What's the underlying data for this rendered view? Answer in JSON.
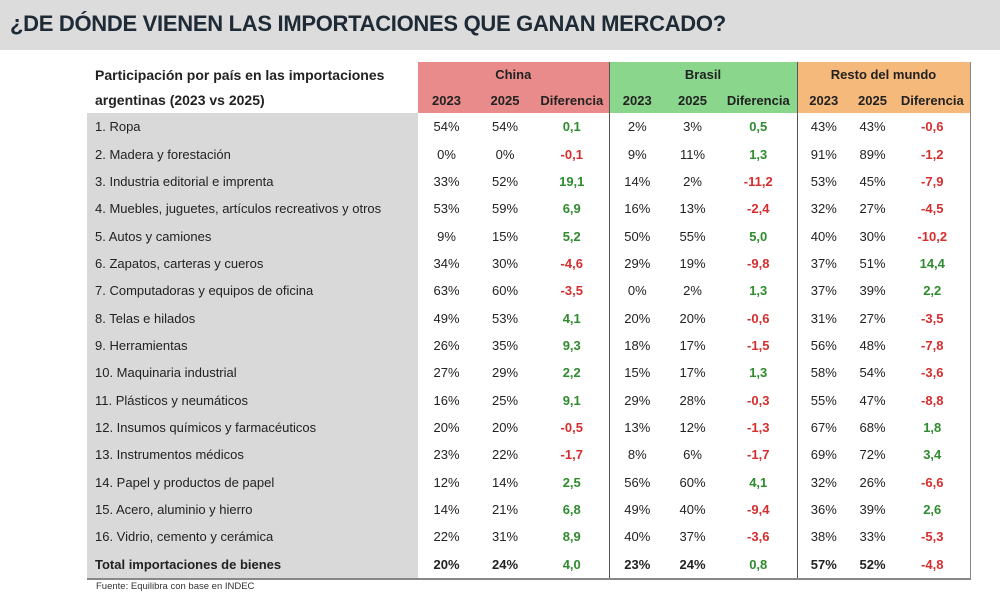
{
  "title": "¿DE DÓNDE VIENEN LAS IMPORTACIONES QUE GANAN MERCADO?",
  "header": {
    "label_line1": "Participación por país en las importaciones",
    "label_line2": "argentinas (2023 vs 2025)",
    "groups": [
      "China",
      "Brasil",
      "Resto del mundo"
    ],
    "subcolumns": [
      "2023",
      "2025",
      "Diferencia"
    ]
  },
  "colors": {
    "china": "#e98b8b",
    "brasil": "#8ad68c",
    "resto": "#f6b97c",
    "positive": "#2e8b2e",
    "negative": "#d42e2e"
  },
  "rows": [
    {
      "label": "1. Ropa",
      "china": [
        "54%",
        "54%",
        "0,1"
      ],
      "brasil": [
        "2%",
        "3%",
        "0,5"
      ],
      "resto": [
        "43%",
        "43%",
        "-0,6"
      ]
    },
    {
      "label": "2. Madera y forestación",
      "china": [
        "0%",
        "0%",
        "-0,1"
      ],
      "brasil": [
        "9%",
        "11%",
        "1,3"
      ],
      "resto": [
        "91%",
        "89%",
        "-1,2"
      ]
    },
    {
      "label": "3. Industria editorial e imprenta",
      "china": [
        "33%",
        "52%",
        "19,1"
      ],
      "brasil": [
        "14%",
        "2%",
        "-11,2"
      ],
      "resto": [
        "53%",
        "45%",
        "-7,9"
      ]
    },
    {
      "label": "4. Muebles, juguetes, artículos recreativos y otros",
      "china": [
        "53%",
        "59%",
        "6,9"
      ],
      "brasil": [
        "16%",
        "13%",
        "-2,4"
      ],
      "resto": [
        "32%",
        "27%",
        "-4,5"
      ]
    },
    {
      "label": "5. Autos y camiones",
      "china": [
        "9%",
        "15%",
        "5,2"
      ],
      "brasil": [
        "50%",
        "55%",
        "5,0"
      ],
      "resto": [
        "40%",
        "30%",
        "-10,2"
      ]
    },
    {
      "label": "6. Zapatos, carteras y cueros",
      "china": [
        "34%",
        "30%",
        "-4,6"
      ],
      "brasil": [
        "29%",
        "19%",
        "-9,8"
      ],
      "resto": [
        "37%",
        "51%",
        "14,4"
      ]
    },
    {
      "label": "7. Computadoras y equipos de oficina",
      "china": [
        "63%",
        "60%",
        "-3,5"
      ],
      "brasil": [
        "0%",
        "2%",
        "1,3"
      ],
      "resto": [
        "37%",
        "39%",
        "2,2"
      ]
    },
    {
      "label": "8. Telas e hilados",
      "china": [
        "49%",
        "53%",
        "4,1"
      ],
      "brasil": [
        "20%",
        "20%",
        "-0,6"
      ],
      "resto": [
        "31%",
        "27%",
        "-3,5"
      ]
    },
    {
      "label": "9. Herramientas",
      "china": [
        "26%",
        "35%",
        "9,3"
      ],
      "brasil": [
        "18%",
        "17%",
        "-1,5"
      ],
      "resto": [
        "56%",
        "48%",
        "-7,8"
      ]
    },
    {
      "label": "10. Maquinaria industrial",
      "china": [
        "27%",
        "29%",
        "2,2"
      ],
      "brasil": [
        "15%",
        "17%",
        "1,3"
      ],
      "resto": [
        "58%",
        "54%",
        "-3,6"
      ]
    },
    {
      "label": "11. Plásticos y neumáticos",
      "china": [
        "16%",
        "25%",
        "9,1"
      ],
      "brasil": [
        "29%",
        "28%",
        "-0,3"
      ],
      "resto": [
        "55%",
        "47%",
        "-8,8"
      ]
    },
    {
      "label": "12. Insumos químicos y farmacéuticos",
      "china": [
        "20%",
        "20%",
        "-0,5"
      ],
      "brasil": [
        "13%",
        "12%",
        "-1,3"
      ],
      "resto": [
        "67%",
        "68%",
        "1,8"
      ]
    },
    {
      "label": "13. Instrumentos médicos",
      "china": [
        "23%",
        "22%",
        "-1,7"
      ],
      "brasil": [
        "8%",
        "6%",
        "-1,7"
      ],
      "resto": [
        "69%",
        "72%",
        "3,4"
      ]
    },
    {
      "label": "14. Papel y productos de papel",
      "china": [
        "12%",
        "14%",
        "2,5"
      ],
      "brasil": [
        "56%",
        "60%",
        "4,1"
      ],
      "resto": [
        "32%",
        "26%",
        "-6,6"
      ]
    },
    {
      "label": "15. Acero, aluminio y hierro",
      "china": [
        "14%",
        "21%",
        "6,8"
      ],
      "brasil": [
        "49%",
        "40%",
        "-9,4"
      ],
      "resto": [
        "36%",
        "39%",
        "2,6"
      ]
    },
    {
      "label": "16. Vidrio, cemento y cerámica",
      "china": [
        "22%",
        "31%",
        "8,9"
      ],
      "brasil": [
        "40%",
        "37%",
        "-3,6"
      ],
      "resto": [
        "38%",
        "33%",
        "-5,3"
      ]
    },
    {
      "label": "Total importaciones de bienes",
      "china": [
        "20%",
        "24%",
        "4,0"
      ],
      "brasil": [
        "23%",
        "24%",
        "0,8"
      ],
      "resto": [
        "57%",
        "52%",
        "-4,8"
      ],
      "total": true
    }
  ],
  "source": "Fuente: Equilibra con base en INDEC"
}
